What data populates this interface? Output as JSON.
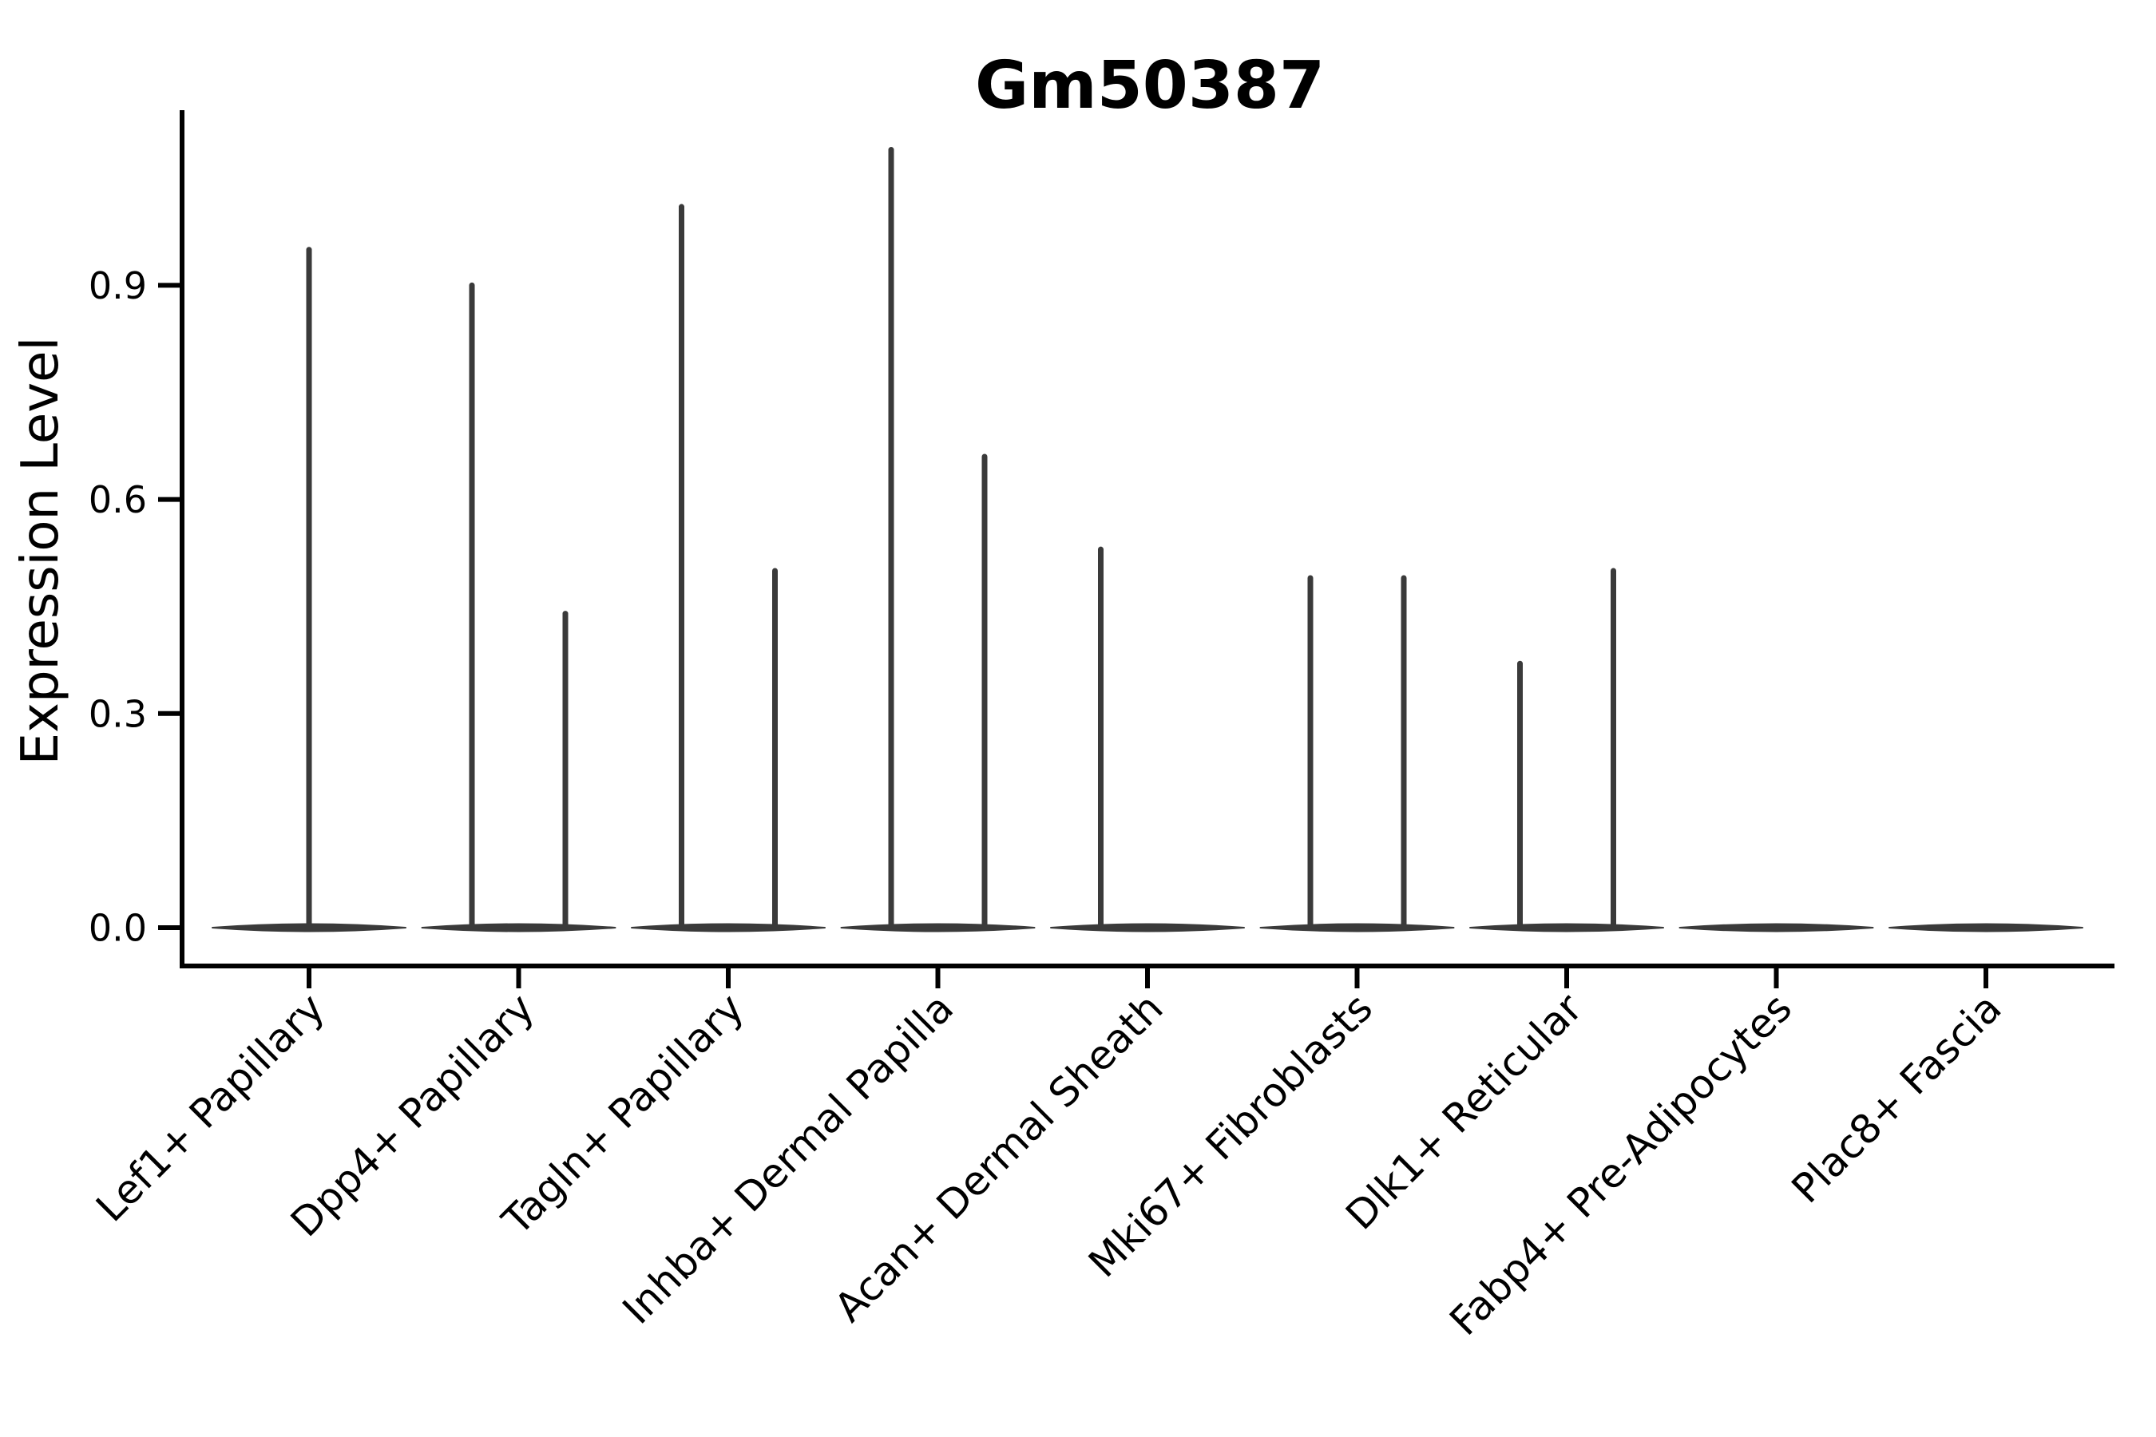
{
  "page": {
    "background_color": "#ffffff"
  },
  "header": {
    "title": "Gm50387"
  },
  "chart_data": {
    "type": "violin",
    "title": "Gm50387",
    "title_weight": "bold",
    "xlabel": "",
    "ylabel": "Expression Level",
    "ylim": [
      -0.05,
      1.14
    ],
    "grid": false,
    "legend_position": "none",
    "x_tick_rotation_deg": 45,
    "colors": {
      "violin_stroke": "#3a3a3a",
      "axis": "#000000",
      "text": "#000000",
      "background": "#ffffff"
    },
    "y_ticks": [
      {
        "value": 0.0,
        "label": "0.0"
      },
      {
        "value": 0.3,
        "label": "0.3"
      },
      {
        "value": 0.6,
        "label": "0.6"
      },
      {
        "value": 0.9,
        "label": "0.9"
      }
    ],
    "categories": [
      "Lef1+ Papillary",
      "Dpp4+ Papillary",
      "Tagln+ Papillary",
      "Inhba+ Dermal Papilla",
      "Acan+ Dermal Sheath",
      "Mki67+ Fibroblasts",
      "Dlk1+ Reticular",
      "Fabp4+ Pre-Adipocytes",
      "Plac8+ Fascia"
    ],
    "violins": [
      {
        "category": "Lef1+ Papillary",
        "baseline_value": 0.0,
        "spikes": [
          {
            "position": "center",
            "max_expression": 0.95
          }
        ]
      },
      {
        "category": "Dpp4+ Papillary",
        "baseline_value": 0.0,
        "spikes": [
          {
            "position": "left",
            "max_expression": 0.9
          },
          {
            "position": "right",
            "max_expression": 0.44
          }
        ]
      },
      {
        "category": "Tagln+ Papillary",
        "baseline_value": 0.0,
        "spikes": [
          {
            "position": "left",
            "max_expression": 1.01
          },
          {
            "position": "right",
            "max_expression": 0.5
          }
        ]
      },
      {
        "category": "Inhba+ Dermal Papilla",
        "baseline_value": 0.0,
        "spikes": [
          {
            "position": "left",
            "max_expression": 1.09
          },
          {
            "position": "right",
            "max_expression": 0.66
          }
        ]
      },
      {
        "category": "Acan+ Dermal Sheath",
        "baseline_value": 0.0,
        "spikes": [
          {
            "position": "left",
            "max_expression": 0.53
          }
        ]
      },
      {
        "category": "Mki67+ Fibroblasts",
        "baseline_value": 0.0,
        "spikes": [
          {
            "position": "left",
            "max_expression": 0.49
          },
          {
            "position": "right",
            "max_expression": 0.49
          }
        ]
      },
      {
        "category": "Dlk1+ Reticular",
        "baseline_value": 0.0,
        "spikes": [
          {
            "position": "left",
            "max_expression": 0.37
          },
          {
            "position": "right",
            "max_expression": 0.5
          }
        ]
      },
      {
        "category": "Fabp4+ Pre-Adipocytes",
        "baseline_value": 0.0,
        "spikes": []
      },
      {
        "category": "Plac8+ Fascia",
        "baseline_value": 0.0,
        "spikes": []
      }
    ]
  }
}
